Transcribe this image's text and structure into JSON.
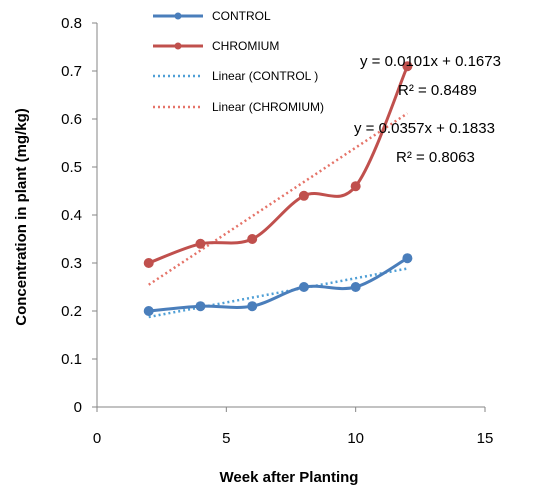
{
  "chart_data": {
    "type": "line",
    "title": "",
    "xlabel": "Week after Planting",
    "ylabel": "Concentration in plant (mg/kg)",
    "xlim": [
      0,
      15
    ],
    "ylim": [
      0,
      0.8
    ],
    "x_ticks": [
      "0",
      "5",
      "10",
      "15"
    ],
    "y_ticks": [
      "0",
      "0.1",
      "0.2",
      "0.3",
      "0.4",
      "0.5",
      "0.6",
      "0.7",
      "0.8"
    ],
    "grid": false,
    "legend_position": "top-center",
    "series": [
      {
        "name": "CONTROL",
        "color": "#4a7ebb",
        "marker": "circle",
        "smooth": true,
        "x": [
          2,
          4,
          6,
          8,
          10,
          12
        ],
        "y": [
          0.2,
          0.21,
          0.21,
          0.25,
          0.25,
          0.31
        ]
      },
      {
        "name": "CHROMIUM",
        "color": "#c0504d",
        "marker": "circle",
        "smooth": true,
        "x": [
          2,
          4,
          6,
          8,
          10,
          12
        ],
        "y": [
          0.3,
          0.34,
          0.35,
          0.44,
          0.46,
          0.71
        ]
      }
    ],
    "trendlines": [
      {
        "name": "Linear (CONTROL )",
        "color": "#4f9fd6",
        "style": "dotted",
        "slope": 0.0101,
        "intercept": 0.1673,
        "x_range": [
          2,
          12
        ],
        "equation": "y = 0.0101x + 0.1673",
        "r2": "R² = 0.8489"
      },
      {
        "name": "Linear (CHROMIUM)",
        "color": "#e57368",
        "style": "dotted",
        "slope": 0.0357,
        "intercept": 0.1833,
        "x_range": [
          2,
          12
        ],
        "equation": "y = 0.0357x + 0.1833",
        "r2": "R² = 0.8063"
      }
    ]
  }
}
